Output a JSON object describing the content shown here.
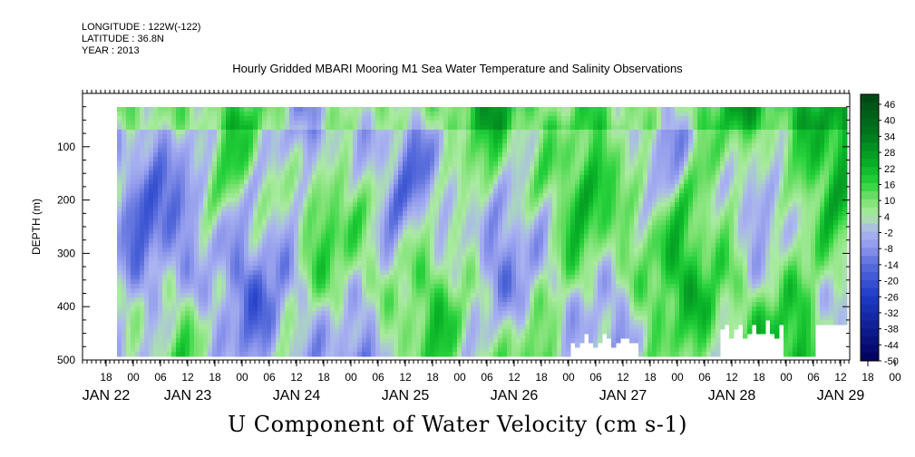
{
  "header": {
    "longitude": "LONGITUDE : 122W(-122)",
    "latitude": "LATITUDE : 36.8N",
    "year": "YEAR : 2013",
    "title": "Hourly Gridded MBARI Mooring M1 Sea Water Temperature and Salinity Observations"
  },
  "chart_data": {
    "type": "heatmap",
    "title": "U Component of Water Velocity (cm s-1)",
    "ylabel": "DEPTH (m)",
    "xlabel": "",
    "y_axis": {
      "reversed": true,
      "ticks": [
        100,
        200,
        300,
        400,
        500
      ],
      "range_m": [
        500,
        20
      ]
    },
    "x_axis": {
      "hour_ticks": [
        {
          "day": 0,
          "hour": 18,
          "label": "18"
        },
        {
          "day": 1,
          "hour": 0,
          "label": "00"
        },
        {
          "day": 1,
          "hour": 6,
          "label": "06"
        },
        {
          "day": 1,
          "hour": 12,
          "label": "12"
        },
        {
          "day": 1,
          "hour": 18,
          "label": "18"
        },
        {
          "day": 2,
          "hour": 0,
          "label": "00"
        },
        {
          "day": 2,
          "hour": 6,
          "label": "06"
        },
        {
          "day": 2,
          "hour": 12,
          "label": "12"
        },
        {
          "day": 2,
          "hour": 18,
          "label": "18"
        },
        {
          "day": 3,
          "hour": 0,
          "label": "00"
        },
        {
          "day": 3,
          "hour": 6,
          "label": "06"
        },
        {
          "day": 3,
          "hour": 12,
          "label": "12"
        },
        {
          "day": 3,
          "hour": 18,
          "label": "18"
        },
        {
          "day": 4,
          "hour": 0,
          "label": "00"
        },
        {
          "day": 4,
          "hour": 6,
          "label": "06"
        },
        {
          "day": 4,
          "hour": 12,
          "label": "12"
        },
        {
          "day": 4,
          "hour": 18,
          "label": "18"
        },
        {
          "day": 5,
          "hour": 0,
          "label": "00"
        },
        {
          "day": 5,
          "hour": 6,
          "label": "06"
        },
        {
          "day": 5,
          "hour": 12,
          "label": "12"
        },
        {
          "day": 5,
          "hour": 18,
          "label": "18"
        },
        {
          "day": 6,
          "hour": 0,
          "label": "00"
        },
        {
          "day": 6,
          "hour": 6,
          "label": "06"
        },
        {
          "day": 6,
          "hour": 12,
          "label": "12"
        },
        {
          "day": 6,
          "hour": 18,
          "label": "18"
        },
        {
          "day": 7,
          "hour": 0,
          "label": "00"
        },
        {
          "day": 7,
          "hour": 6,
          "label": "06"
        },
        {
          "day": 7,
          "hour": 12,
          "label": "12"
        },
        {
          "day": 7,
          "hour": 18,
          "label": "18"
        },
        {
          "day": 8,
          "hour": 0,
          "label": "00"
        },
        {
          "day": 8,
          "hour": 6,
          "label": "06"
        },
        {
          "day": 8,
          "hour": 12,
          "label": "12"
        }
      ],
      "day_labels": [
        {
          "label": "JAN 22",
          "day": 0,
          "hour": 18
        },
        {
          "label": "JAN 23",
          "day": 1,
          "hour": 12
        },
        {
          "label": "JAN 24",
          "day": 2,
          "hour": 12
        },
        {
          "label": "JAN 25",
          "day": 3,
          "hour": 12
        },
        {
          "label": "JAN 26",
          "day": 4,
          "hour": 12
        },
        {
          "label": "JAN 27",
          "day": 5,
          "hour": 12
        },
        {
          "label": "JAN 28",
          "day": 6,
          "hour": 12
        },
        {
          "label": "JAN 29",
          "day": 7,
          "hour": 12
        }
      ]
    },
    "colorbar": {
      "labels": [
        "46",
        "40",
        "34",
        "28",
        "22",
        "16",
        "10",
        "4",
        "-2",
        "-8",
        "-14",
        "-20",
        "-26",
        "-32",
        "-38",
        "-44",
        "-50"
      ],
      "range": [
        -50,
        49
      ]
    },
    "data_summary": "Hourly U velocity from ~20 m to ~480 m depth, JAN 22 18:00 to JAN 29 12:00; values mostly between -14 and +16 cm s-1, positive (green) dominating late in the record."
  },
  "colors": {
    "neg_strong": "#00005a",
    "neg": "#2a4ad0",
    "neg_weak": "#9aa8ec",
    "zero": "#a8e8a0",
    "pos": "#10d040",
    "pos_strong": "#005a20"
  }
}
